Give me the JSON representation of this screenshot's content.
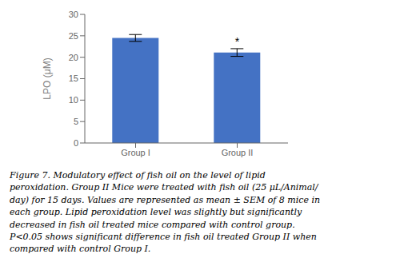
{
  "chart_data": {
    "type": "bar",
    "categories": [
      "Group I",
      "Group II"
    ],
    "values": [
      24.5,
      21.1
    ],
    "errors": [
      0.8,
      0.9
    ],
    "color": "#4472C4",
    "ylabel": "LPO (μM)",
    "ylim": [
      0,
      30
    ],
    "yticks": [
      0,
      5,
      10,
      15,
      20,
      25,
      30
    ],
    "grid": false,
    "annotations": [
      {
        "text": "*",
        "category": "Group II"
      }
    ],
    "caption": [
      "Figure 7. Modulatory effect of fish oil on the level of lipid",
      "peroxidation. Group II Mice were treated with fish oil (25 μL/Animal/",
      "day) for 15 days. Values are represented as mean ± SEM of 8 mice in",
      "each group. Lipid peroxidation level was slightly but significantly",
      "decreased in fish oil treated mice compared with control group.",
      "P<0.05 shows significant difference in fish oil treated Group II when",
      "compared with control Group I."
    ]
  }
}
